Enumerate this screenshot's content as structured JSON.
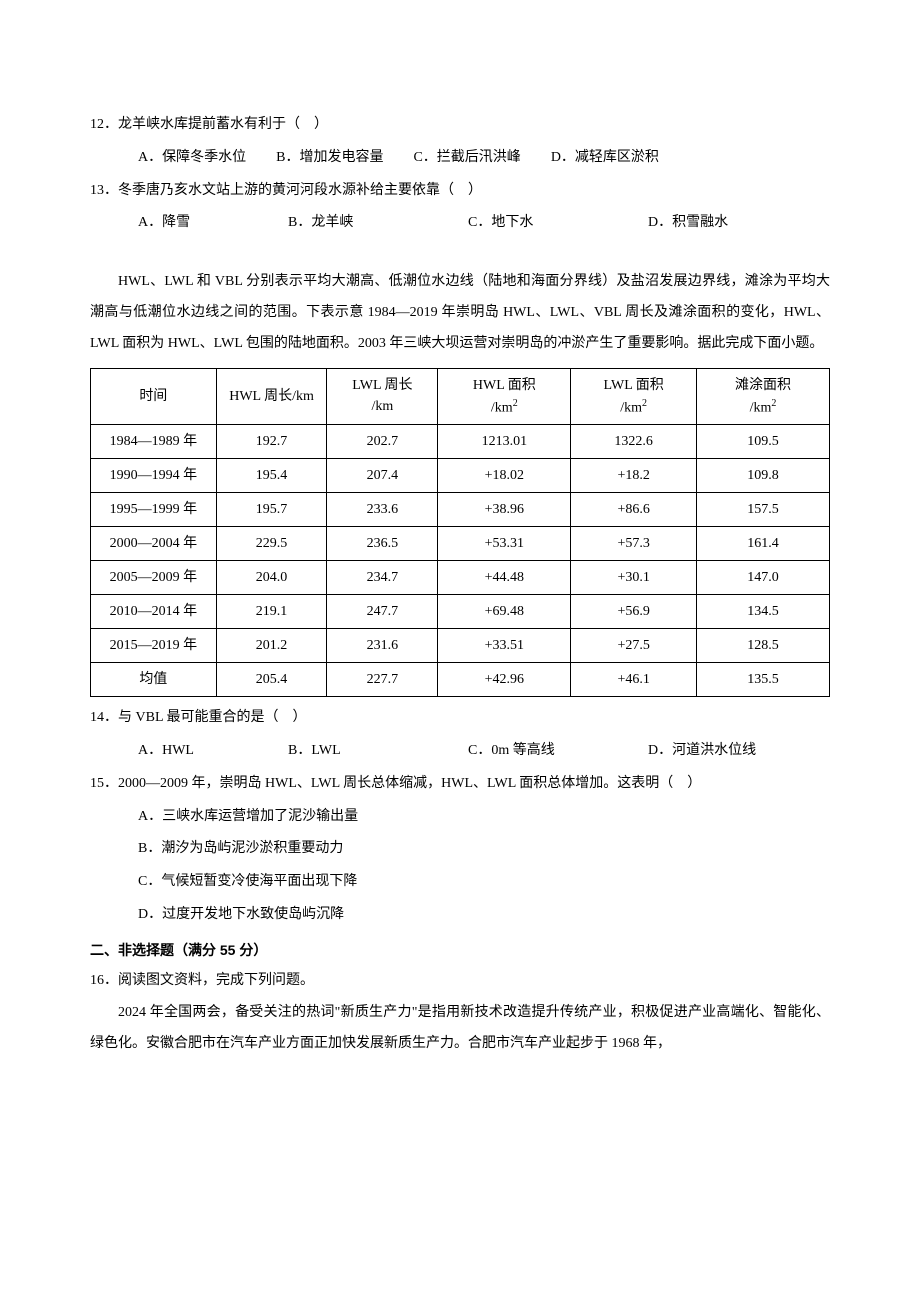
{
  "q12": {
    "stem": "12．龙羊峡水库提前蓄水有利于（　）",
    "A": "A．保障冬季水位",
    "B": "B．增加发电容量",
    "C": "C．拦截后汛洪峰",
    "D": "D．减轻库区淤积"
  },
  "q13": {
    "stem": "13．冬季唐乃亥水文站上游的黄河河段水源补给主要依靠（　）",
    "A": "A．降雪",
    "B": "B．龙羊峡",
    "C": "C．地下水",
    "D": "D．积雪融水"
  },
  "passage": "HWL、LWL 和 VBL 分别表示平均大潮高、低潮位水边线（陆地和海面分界线）及盐沼发展边界线，滩涂为平均大潮高与低潮位水边线之间的范围。下表示意 1984—2019 年崇明岛 HWL、LWL、VBL 周长及滩涂面积的变化，HWL、LWL 面积为 HWL、LWL 包围的陆地面积。2003 年三峡大坝运营对崇明岛的冲淤产生了重要影响。据此完成下面小题。",
  "table": {
    "headers": {
      "c0": "时间",
      "c1": "HWL 周长/km",
      "c2_l1": "LWL 周长",
      "c2_l2": "/km",
      "c3_l1": "HWL 面积",
      "c3_l2_a": "/km",
      "c3_l2_b": "2",
      "c4_l1": "LWL 面积",
      "c4_l2_a": "/km",
      "c4_l2_b": "2",
      "c5_l1": "滩涂面积",
      "c5_l2_a": "/km",
      "c5_l2_b": "2"
    },
    "rows": [
      {
        "c0": "1984—1989 年",
        "c1": "192.7",
        "c2": "202.7",
        "c3": "1213.01",
        "c4": "1322.6",
        "c5": "109.5"
      },
      {
        "c0": "1990—1994 年",
        "c1": "195.4",
        "c2": "207.4",
        "c3": "+18.02",
        "c4": "+18.2",
        "c5": "109.8"
      },
      {
        "c0": "1995—1999 年",
        "c1": "195.7",
        "c2": "233.6",
        "c3": "+38.96",
        "c4": "+86.6",
        "c5": "157.5"
      },
      {
        "c0": "2000—2004 年",
        "c1": "229.5",
        "c2": "236.5",
        "c3": "+53.31",
        "c4": "+57.3",
        "c5": "161.4"
      },
      {
        "c0": "2005—2009 年",
        "c1": "204.0",
        "c2": "234.7",
        "c3": "+44.48",
        "c4": "+30.1",
        "c5": "147.0"
      },
      {
        "c0": "2010—2014 年",
        "c1": "219.1",
        "c2": "247.7",
        "c3": "+69.48",
        "c4": "+56.9",
        "c5": "134.5"
      },
      {
        "c0": "2015—2019 年",
        "c1": "201.2",
        "c2": "231.6",
        "c3": "+33.51",
        "c4": "+27.5",
        "c5": "128.5"
      },
      {
        "c0": "均值",
        "c1": "205.4",
        "c2": "227.7",
        "c3": "+42.96",
        "c4": "+46.1",
        "c5": "135.5"
      }
    ],
    "col_widths": [
      "17%",
      "15%",
      "15%",
      "18%",
      "17%",
      "18%"
    ],
    "border_color": "#000000",
    "fontsize": 14,
    "background_color": "#ffffff"
  },
  "q14": {
    "stem": "14．与 VBL 最可能重合的是（　）",
    "A": "A．HWL",
    "B": "B．LWL",
    "C": "C．0m 等高线",
    "D": "D．河道洪水位线"
  },
  "q15": {
    "stem": "15．2000—2009 年，崇明岛 HWL、LWL 周长总体缩减，HWL、LWL 面积总体增加。这表明（　）",
    "A": "A．三峡水库运营增加了泥沙输出量",
    "B": "B．潮汐为岛屿泥沙淤积重要动力",
    "C": "C．气候短暂变冷使海平面出现下降",
    "D": "D．过度开发地下水致使岛屿沉降"
  },
  "section2": "二、非选择题（满分 55 分）",
  "q16": {
    "stem": "16．阅读图文资料，完成下列问题。",
    "para": "2024 年全国两会，备受关注的热词\"新质生产力\"是指用新技术改造提升传统产业，积极促进产业高端化、智能化、绿色化。安徽合肥市在汽车产业方面正加快发展新质生产力。合肥市汽车产业起步于 1968 年，"
  },
  "colors": {
    "text": "#000000",
    "bg": "#ffffff"
  }
}
